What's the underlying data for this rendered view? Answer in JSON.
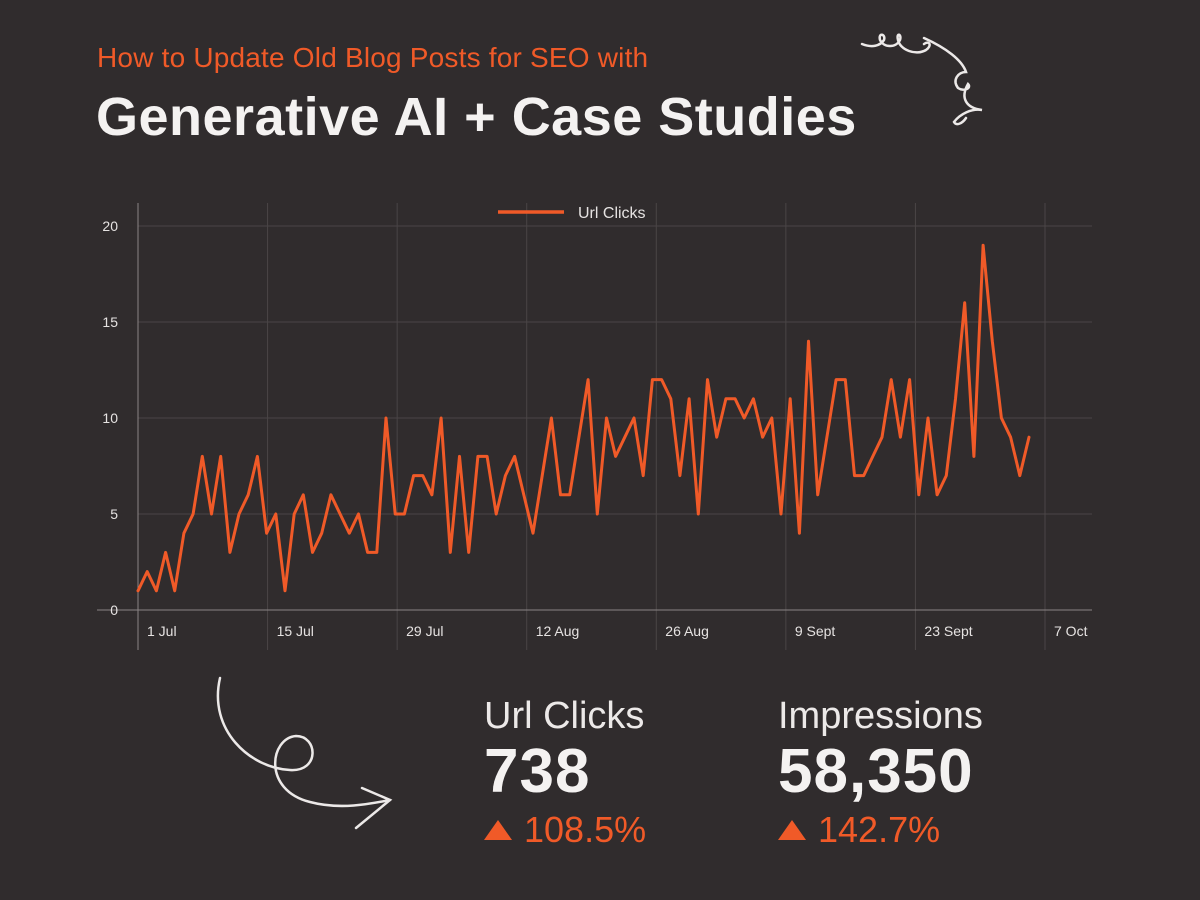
{
  "header": {
    "subtitle": "How to Update Old Blog Posts for SEO with",
    "title": "Generative AI + Case Studies"
  },
  "colors": {
    "background": "#302c2d",
    "accent": "#f05a28",
    "text": "#f2f0ef",
    "grid": "#4a4546"
  },
  "chart_data": {
    "type": "line",
    "title": "",
    "xlabel": "",
    "ylabel": "",
    "ylim": [
      0,
      20
    ],
    "yticks": [
      0,
      5,
      10,
      15,
      20
    ],
    "x_ticks": [
      "1 Jul",
      "15 Jul",
      "29 Jul",
      "12 Aug",
      "26 Aug",
      "9 Sept",
      "23 Sept",
      "7 Oct"
    ],
    "grid": true,
    "legend_position": "top-center",
    "series": [
      {
        "name": "Url Clicks",
        "color": "#f05a28",
        "values": [
          1,
          2,
          1,
          3,
          1,
          4,
          5,
          8,
          5,
          8,
          3,
          5,
          6,
          8,
          4,
          5,
          1,
          5,
          6,
          3,
          4,
          6,
          5,
          4,
          5,
          3,
          3,
          10,
          5,
          5,
          7,
          7,
          6,
          10,
          3,
          8,
          3,
          8,
          8,
          5,
          7,
          8,
          6,
          4,
          7,
          10,
          6,
          6,
          9,
          12,
          5,
          10,
          8,
          9,
          10,
          7,
          12,
          12,
          11,
          7,
          11,
          5,
          12,
          9,
          11,
          11,
          10,
          11,
          9,
          10,
          5,
          11,
          4,
          14,
          6,
          9,
          12,
          12,
          7,
          7,
          8,
          9,
          12,
          9,
          12,
          6,
          10,
          6,
          7,
          11,
          16,
          8,
          19,
          14,
          10,
          9,
          7,
          9
        ]
      }
    ]
  },
  "stats": [
    {
      "label": "Url Clicks",
      "value": "738",
      "change": "108.5%"
    },
    {
      "label": "Impressions",
      "value": "58,350",
      "change": "142.7%"
    }
  ]
}
